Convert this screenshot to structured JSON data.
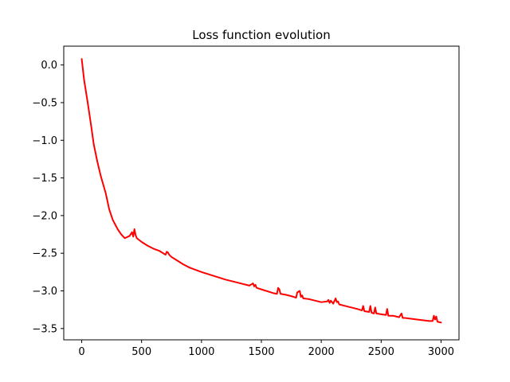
{
  "chart_data": {
    "type": "line",
    "title": "Loss function evolution",
    "xlabel": "",
    "ylabel": "",
    "xlim": [
      -150,
      3150
    ],
    "ylim": [
      -3.65,
      0.25
    ],
    "x_ticks": [
      0,
      500,
      1000,
      1500,
      2000,
      2500,
      3000
    ],
    "x_tick_labels": [
      "0",
      "500",
      "1000",
      "1500",
      "2000",
      "2500",
      "3000"
    ],
    "y_ticks": [
      0.0,
      -0.5,
      -1.0,
      -1.5,
      -2.0,
      -2.5,
      -3.0,
      -3.5
    ],
    "y_tick_labels": [
      "0.0",
      "−0.5",
      "−1.0",
      "−1.5",
      "−2.0",
      "−2.5",
      "−3.0",
      "−3.5"
    ],
    "grid": false,
    "legend": "none",
    "series": [
      {
        "color": "#ff0000",
        "x": [
          0,
          20,
          50,
          80,
          100,
          130,
          160,
          200,
          230,
          260,
          280,
          300,
          330,
          360,
          400,
          420,
          430,
          440,
          450,
          460,
          500,
          550,
          600,
          650,
          700,
          710,
          720,
          730,
          750,
          800,
          850,
          900,
          950,
          1000,
          1100,
          1200,
          1300,
          1400,
          1430,
          1440,
          1450,
          1460,
          1500,
          1600,
          1630,
          1640,
          1650,
          1660,
          1700,
          1750,
          1790,
          1800,
          1820,
          1830,
          1840,
          1850,
          1900,
          1950,
          2000,
          2050,
          2060,
          2070,
          2080,
          2100,
          2120,
          2130,
          2140,
          2150,
          2200,
          2250,
          2300,
          2340,
          2350,
          2360,
          2400,
          2410,
          2420,
          2440,
          2450,
          2460,
          2500,
          2540,
          2550,
          2560,
          2600,
          2650,
          2670,
          2680,
          2700,
          2750,
          2800,
          2850,
          2900,
          2930,
          2940,
          2950,
          2960,
          2970,
          3000
        ],
        "values": [
          0.08,
          -0.2,
          -0.5,
          -0.82,
          -1.05,
          -1.28,
          -1.48,
          -1.7,
          -1.92,
          -2.06,
          -2.12,
          -2.18,
          -2.25,
          -2.3,
          -2.27,
          -2.22,
          -2.28,
          -2.18,
          -2.26,
          -2.3,
          -2.35,
          -2.4,
          -2.44,
          -2.47,
          -2.52,
          -2.48,
          -2.49,
          -2.52,
          -2.55,
          -2.6,
          -2.65,
          -2.69,
          -2.72,
          -2.75,
          -2.8,
          -2.85,
          -2.89,
          -2.93,
          -2.9,
          -2.94,
          -2.92,
          -2.96,
          -2.98,
          -3.03,
          -3.04,
          -2.96,
          -2.98,
          -3.04,
          -3.05,
          -3.07,
          -3.09,
          -3.02,
          -3.0,
          -3.08,
          -3.06,
          -3.1,
          -3.11,
          -3.13,
          -3.15,
          -3.14,
          -3.12,
          -3.16,
          -3.13,
          -3.17,
          -3.1,
          -3.15,
          -3.14,
          -3.18,
          -3.2,
          -3.22,
          -3.24,
          -3.26,
          -3.2,
          -3.27,
          -3.28,
          -3.2,
          -3.29,
          -3.3,
          -3.22,
          -3.3,
          -3.31,
          -3.32,
          -3.24,
          -3.33,
          -3.33,
          -3.35,
          -3.3,
          -3.36,
          -3.36,
          -3.37,
          -3.38,
          -3.39,
          -3.4,
          -3.4,
          -3.33,
          -3.38,
          -3.34,
          -3.41,
          -3.42
        ]
      }
    ]
  }
}
